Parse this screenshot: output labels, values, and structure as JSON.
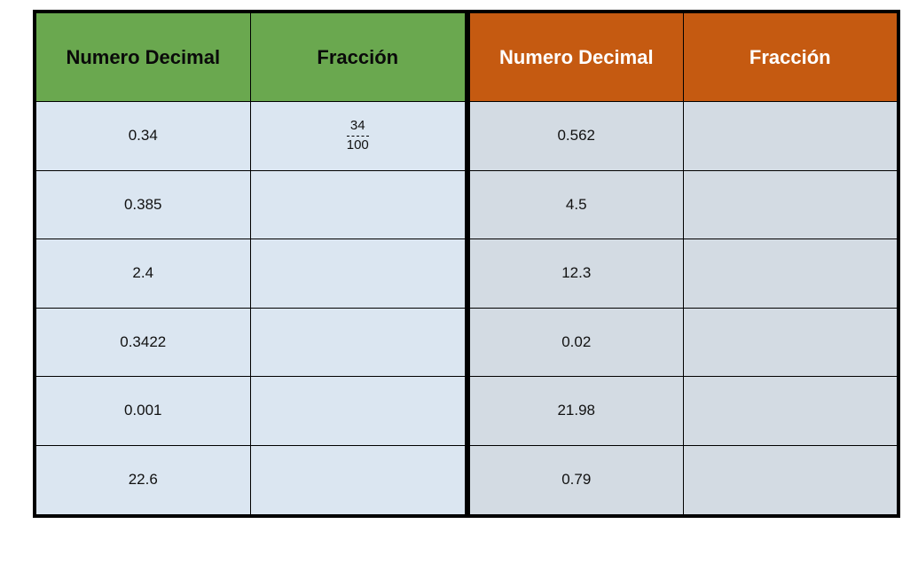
{
  "left_table": {
    "headers": [
      "Numero Decimal",
      "Fracción"
    ],
    "rows": [
      {
        "decimal": "0.34",
        "fraction_num": "34",
        "fraction_den": "100"
      },
      {
        "decimal": "0.385"
      },
      {
        "decimal": "2.4"
      },
      {
        "decimal": "0.3422"
      },
      {
        "decimal": "0.001"
      },
      {
        "decimal": "22.6"
      }
    ],
    "header_color": "#6aa84f"
  },
  "right_table": {
    "headers": [
      "Numero Decimal",
      "Fracción"
    ],
    "rows": [
      {
        "decimal": "0.562"
      },
      {
        "decimal": "4.5"
      },
      {
        "decimal": "12.3"
      },
      {
        "decimal": "0.02"
      },
      {
        "decimal": "21.98"
      },
      {
        "decimal": "0.79"
      }
    ],
    "header_color": "#c55a11"
  }
}
